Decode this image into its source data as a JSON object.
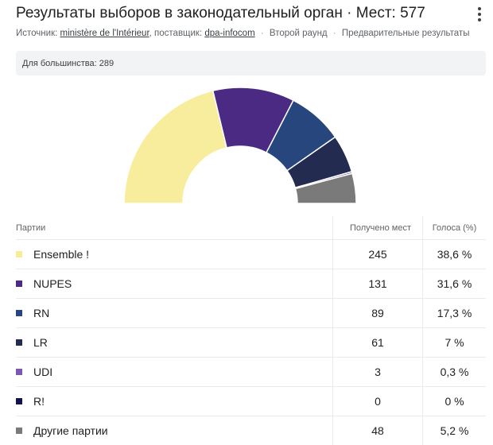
{
  "header": {
    "title": "Результаты выборов в законодательный орган · Мест: 577",
    "menu_icon": "more-vert-icon"
  },
  "source": {
    "prefix": "Источник:",
    "source_link": "ministère de l'Intérieur",
    "provider_prefix": ", поставщик:",
    "provider_link": "dpa-infocom",
    "separator": "·",
    "round": "Второй раунд",
    "status": "Предварительные результаты"
  },
  "majority": {
    "label": "Для большинства: 289"
  },
  "table": {
    "col_party": "Партии",
    "col_seats": "Получено мест",
    "col_votes": "Голоса (%)"
  },
  "parties": [
    {
      "name": "Ensemble !",
      "seats": "245",
      "votes": "38,6 %",
      "color": "#f7ed9c"
    },
    {
      "name": "NUPES",
      "seats": "131",
      "votes": "31,6 %",
      "color": "#4b2a84"
    },
    {
      "name": "RN",
      "seats": "89",
      "votes": "17,3 %",
      "color": "#27467d"
    },
    {
      "name": "LR",
      "seats": "61",
      "votes": "7 %",
      "color": "#232b50"
    },
    {
      "name": "UDI",
      "seats": "3",
      "votes": "0,3 %",
      "color": "#7b59b0"
    },
    {
      "name": "R!",
      "seats": "0",
      "votes": "0 %",
      "color": "#13124a"
    },
    {
      "name": "Другие партии",
      "seats": "48",
      "votes": "5,2 %",
      "color": "#7a7a7a"
    }
  ],
  "chart_data": {
    "type": "pie",
    "variant": "half-donut",
    "total_seats": 577,
    "majority": 289,
    "categories": [
      "Ensemble !",
      "NUPES",
      "RN",
      "LR",
      "UDI",
      "R!",
      "Другие партии"
    ],
    "values": [
      245,
      131,
      89,
      61,
      3,
      0,
      48
    ],
    "colors": [
      "#f7ed9c",
      "#4b2a84",
      "#27467d",
      "#232b50",
      "#7b59b0",
      "#13124a",
      "#7a7a7a"
    ]
  }
}
